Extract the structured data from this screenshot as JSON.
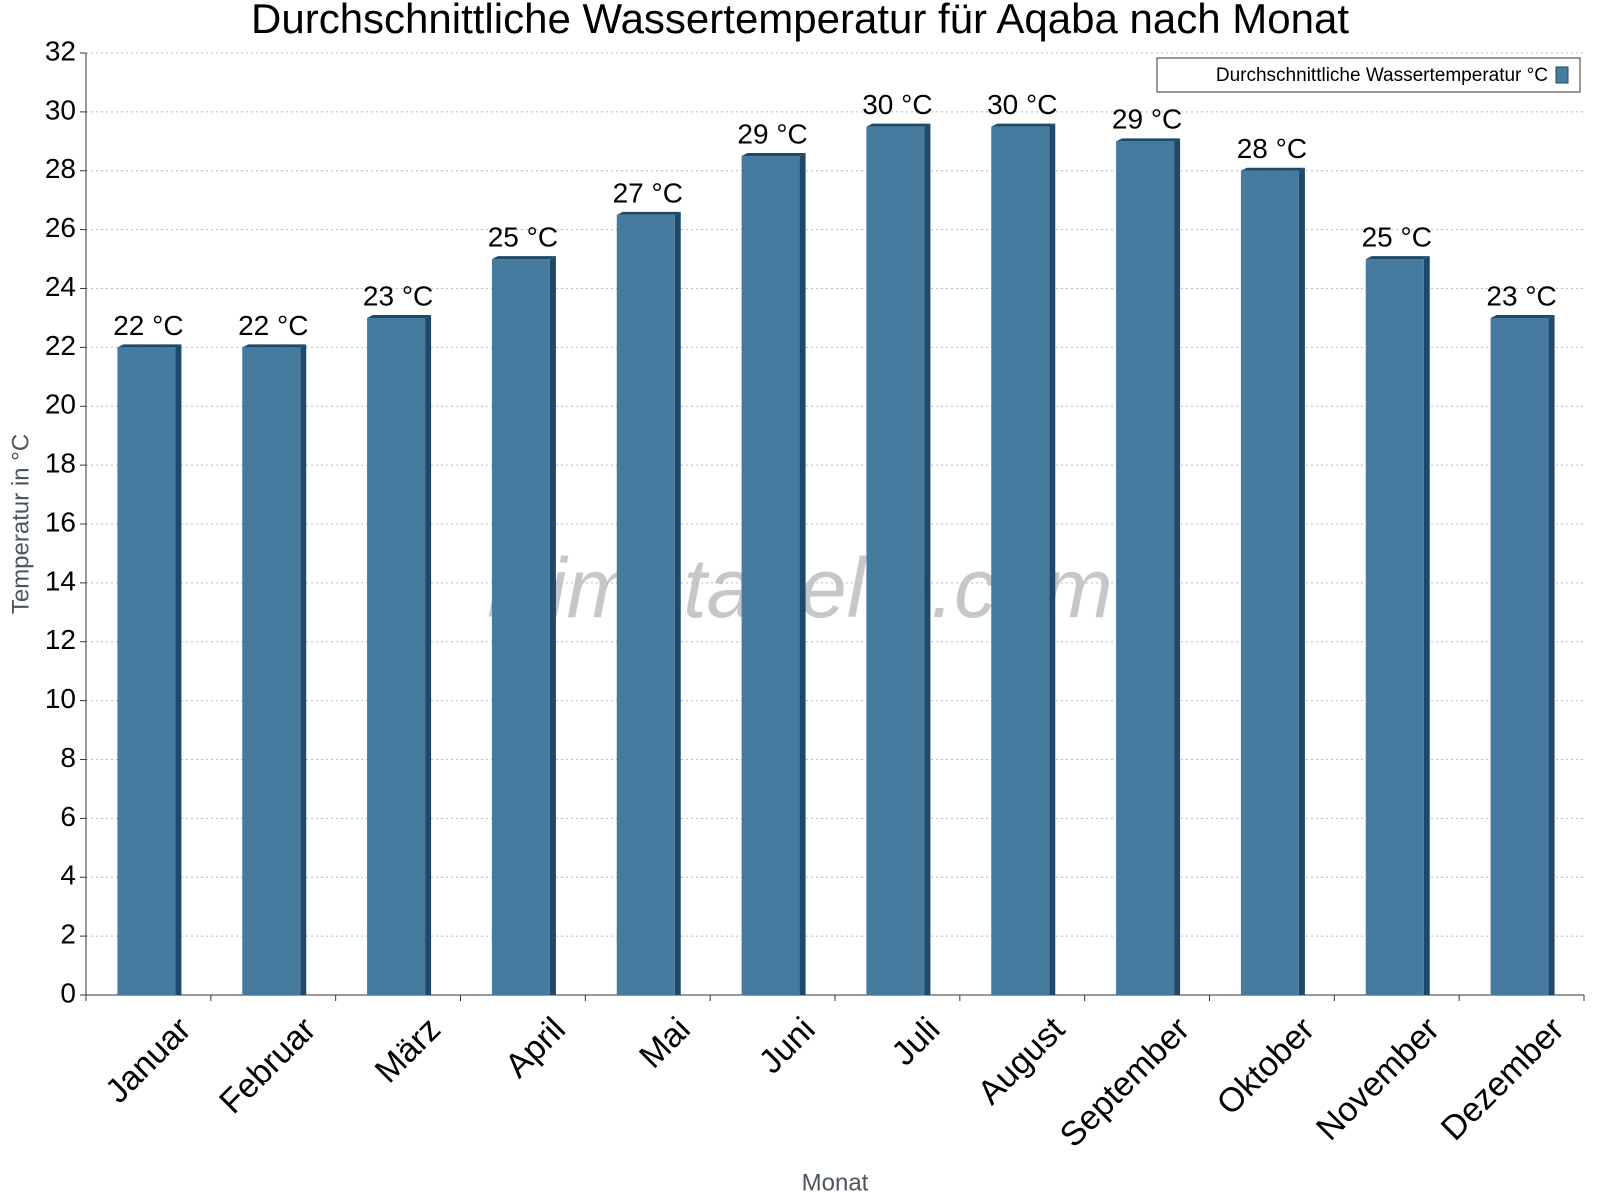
{
  "chart_data": {
    "type": "bar",
    "title": "Durchschnittliche Wassertemperatur für Aqaba nach Monat",
    "x_label": "Monat",
    "y_label": "Temperatur in °C",
    "watermark": "klimatabelle.com",
    "categories": [
      "Januar",
      "Februar",
      "März",
      "April",
      "Mai",
      "Juni",
      "Juli",
      "August",
      "September",
      "Oktober",
      "November",
      "Dezember"
    ],
    "series": [
      {
        "name": "Durchschnittliche Wassertemperatur °C",
        "color": "#467a9e",
        "values": [
          22,
          22,
          23,
          25,
          26.5,
          28.5,
          29.5,
          29.5,
          29,
          28,
          25,
          23
        ],
        "value_labels": [
          "22 °C",
          "22 °C",
          "23 °C",
          "25 °C",
          "27 °C",
          "29 °C",
          "30 °C",
          "30 °C",
          "29 °C",
          "28 °C",
          "25 °C",
          "23 °C"
        ]
      }
    ],
    "ylim": [
      0,
      32
    ],
    "yticks": [
      0,
      2,
      4,
      6,
      8,
      10,
      12,
      14,
      16,
      18,
      20,
      22,
      24,
      26,
      28,
      30,
      32
    ],
    "grid": true,
    "legend": "top-right"
  }
}
